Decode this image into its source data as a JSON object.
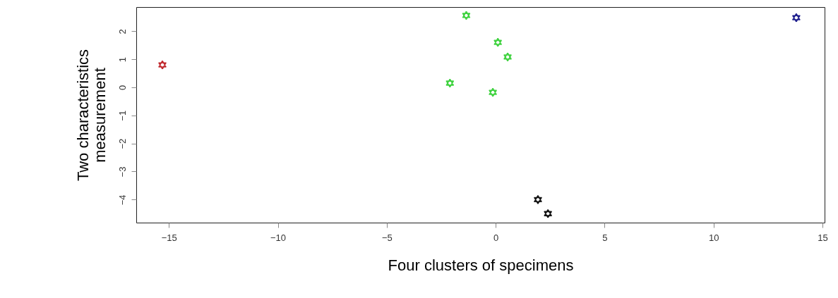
{
  "chart_data": {
    "type": "scatter",
    "xlabel": "Four clusters of specimens",
    "ylabel": "Two characteristics measurement",
    "xlim": [
      -16.5,
      15.1
    ],
    "ylim": [
      -4.82,
      2.86
    ],
    "xticks": [
      -15,
      -10,
      -5,
      0,
      5,
      10,
      15
    ],
    "yticks": [
      -4,
      -3,
      -2,
      -1,
      0,
      1,
      2
    ],
    "grid": false,
    "legend": false,
    "marker": "star",
    "series": [
      {
        "color": "#c0282d",
        "x": [
          -15.3
        ],
        "values": [
          0.8
        ]
      },
      {
        "color": "#3fd23f",
        "x": [
          -1.35,
          0.1,
          0.55,
          -2.1,
          -0.13
        ],
        "values": [
          2.56,
          1.6,
          1.08,
          0.15,
          -0.18
        ]
      },
      {
        "color": "#111111",
        "x": [
          1.94,
          2.4
        ],
        "values": [
          -4.0,
          -4.5
        ]
      },
      {
        "color": "#1c1c8c",
        "x": [
          13.8
        ],
        "values": [
          2.48
        ]
      }
    ]
  }
}
